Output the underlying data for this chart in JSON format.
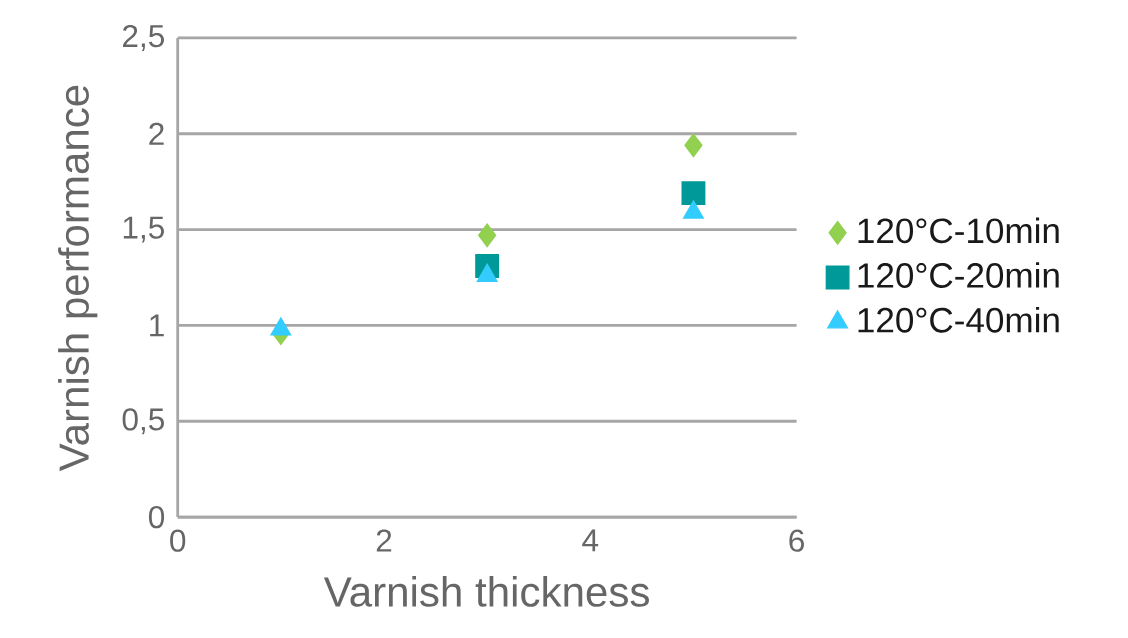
{
  "chart_data": {
    "type": "scatter",
    "xlabel": "Varnish thickness",
    "ylabel": "Varnish performance",
    "x": [
      1,
      3,
      5
    ],
    "series": [
      {
        "name": "120°C-10min",
        "color": "#92d050",
        "marker": "diamond",
        "values": [
          0.96,
          1.47,
          1.94
        ]
      },
      {
        "name": "120°C-20min",
        "color": "#009999",
        "marker": "square",
        "values": [
          null,
          1.31,
          1.69
        ]
      },
      {
        "name": "120°C-40min",
        "color": "#33ccff",
        "marker": "triangle",
        "values": [
          0.98,
          1.26,
          1.59
        ]
      }
    ],
    "xlim": [
      0,
      6
    ],
    "xticks": [
      0,
      2,
      4,
      6
    ],
    "ylim": [
      0,
      2.5
    ],
    "yticks": [
      0,
      {
        "value": 0.5,
        "label": "0,5"
      },
      1,
      {
        "value": 1.5,
        "label": "1,5"
      },
      2,
      {
        "value": 2.5,
        "label": "2,5"
      }
    ],
    "grid": "y",
    "legend": "right"
  }
}
